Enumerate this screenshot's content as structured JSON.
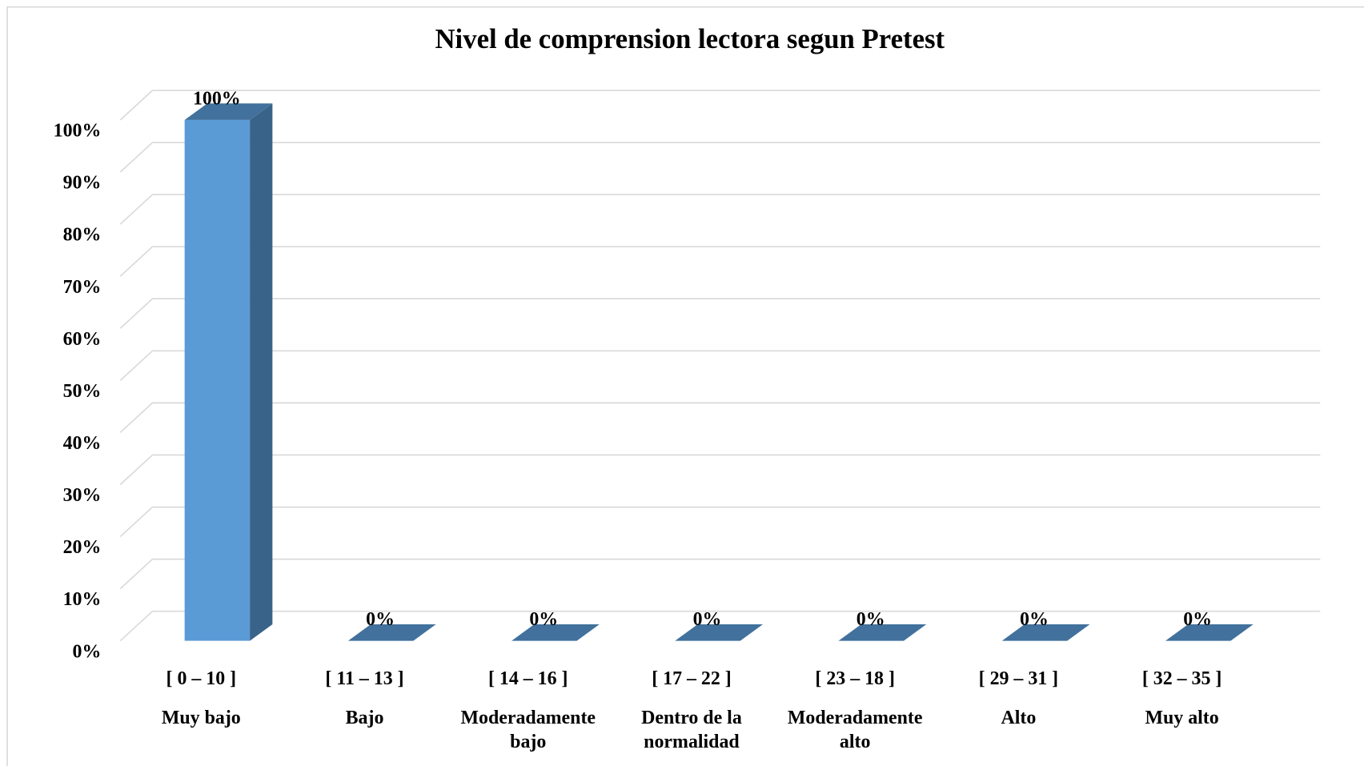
{
  "chart_data": {
    "type": "bar3d",
    "title": "Nivel de comprension lectora  segun Pretest",
    "categories": [
      "[ 0 – 10 ]",
      "[ 11 – 13 ]",
      "[ 14 – 16 ]",
      "[ 17 – 22 ]",
      "[ 23 – 18 ]",
      "[ 29 – 31 ]",
      "[ 32 – 35 ]"
    ],
    "category_labels": [
      "Muy bajo",
      "Bajo",
      "Moderadamente bajo",
      "Dentro de la normalidad",
      "Moderadamente alto",
      "Alto",
      "Muy alto"
    ],
    "values": [
      100,
      0,
      0,
      0,
      0,
      0,
      0
    ],
    "value_labels": [
      "100%",
      "0%",
      "0%",
      "0%",
      "0%",
      "0%",
      "0%"
    ],
    "color": "#5b9bd5",
    "ylim": [
      0,
      100
    ],
    "yticks": [
      {
        "value": 0,
        "label": "0%"
      },
      {
        "value": 10,
        "label": "10%"
      },
      {
        "value": 20,
        "label": "20%"
      },
      {
        "value": 30,
        "label": "30%"
      },
      {
        "value": 40,
        "label": "40%"
      },
      {
        "value": 50,
        "label": "50%"
      },
      {
        "value": 60,
        "label": "60%"
      },
      {
        "value": 70,
        "label": "70%"
      },
      {
        "value": 80,
        "label": "80%"
      },
      {
        "value": 90,
        "label": "90%"
      },
      {
        "value": 100,
        "label": "100%"
      }
    ],
    "grid": true
  }
}
